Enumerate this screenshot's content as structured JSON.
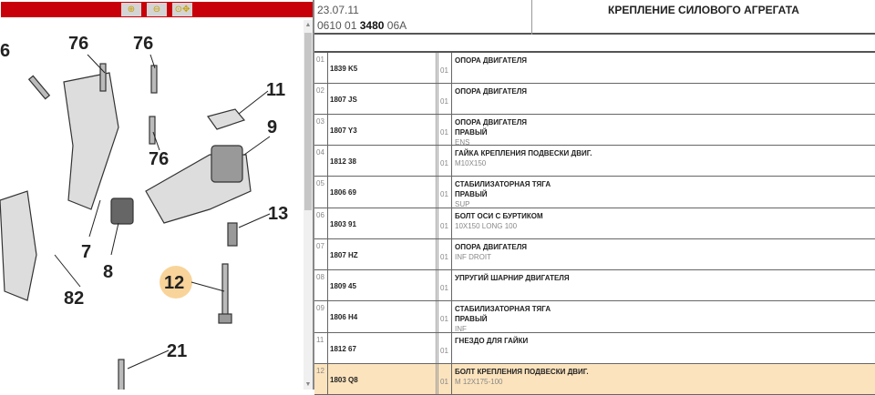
{
  "toolbar": {
    "buttons": [
      {
        "icon": "zoom-in-icon"
      },
      {
        "icon": "zoom-out-icon"
      },
      {
        "icon": "zoom-pan-icon"
      }
    ],
    "color": "#c8000a"
  },
  "diagram": {
    "callouts": [
      "6",
      "76",
      "76",
      "11",
      "9",
      "76",
      "7",
      "8",
      "13",
      "12",
      "82",
      "21"
    ],
    "highlighted": "12",
    "highlight_color": "#f8d49a"
  },
  "header": {
    "date": "23.07.11",
    "code_prefix": "0610 01",
    "code_bold": "3480",
    "code_suffix": "06A",
    "title": "КРЕПЛЕНИЕ СИЛОВОГО АГРЕГАТА"
  },
  "parts": [
    {
      "num": "01",
      "ref": "1839 K5",
      "qty": "01",
      "lines": [
        "ОПОРА ДВИГАТЕЛЯ"
      ],
      "notes": []
    },
    {
      "num": "02",
      "ref": "1807 JS",
      "qty": "01",
      "lines": [
        "ОПОРА ДВИГАТЕЛЯ"
      ],
      "notes": []
    },
    {
      "num": "03",
      "ref": "1807 Y3",
      "qty": "01",
      "lines": [
        "ОПОРА ДВИГАТЕЛЯ",
        "ПРАВЫЙ"
      ],
      "notes": [
        "ENS"
      ]
    },
    {
      "num": "04",
      "ref": "1812 38",
      "qty": "01",
      "lines": [
        "ГАЙКА КРЕПЛЕНИЯ ПОДВЕСКИ ДВИГ."
      ],
      "notes": [
        "M10X150"
      ]
    },
    {
      "num": "05",
      "ref": "1806 69",
      "qty": "01",
      "lines": [
        "СТАБИЛИЗАТОРНАЯ ТЯГА",
        "ПРАВЫЙ"
      ],
      "notes": [
        "SUP"
      ]
    },
    {
      "num": "06",
      "ref": "1803 91",
      "qty": "01",
      "lines": [
        "БОЛТ ОСИ С БУРТИКОМ"
      ],
      "notes": [
        "10X150 LONG 100"
      ]
    },
    {
      "num": "07",
      "ref": "1807 HZ",
      "qty": "01",
      "lines": [
        "ОПОРА ДВИГАТЕЛЯ"
      ],
      "notes": [
        "INF DROIT"
      ]
    },
    {
      "num": "08",
      "ref": "1809 45",
      "qty": "01",
      "lines": [
        "УПРУГИЙ ШАРНИР ДВИГАТЕЛЯ"
      ],
      "notes": []
    },
    {
      "num": "09",
      "ref": "1806 H4",
      "qty": "01",
      "lines": [
        "СТАБИЛИЗАТОРНАЯ ТЯГА",
        "ПРАВЫЙ"
      ],
      "notes": [
        "INF"
      ]
    },
    {
      "num": "11",
      "ref": "1812 67",
      "qty": "01",
      "lines": [
        "ГНЕЗДО ДЛЯ ГАЙКИ"
      ],
      "notes": []
    },
    {
      "num": "12",
      "ref": "1803 Q8",
      "qty": "01",
      "lines": [
        "БОЛТ КРЕПЛЕНИЯ ПОДВЕСКИ ДВИГ."
      ],
      "notes": [
        "M 12X175-100"
      ],
      "selected": true
    }
  ],
  "selected_color": "#fbe3bd"
}
